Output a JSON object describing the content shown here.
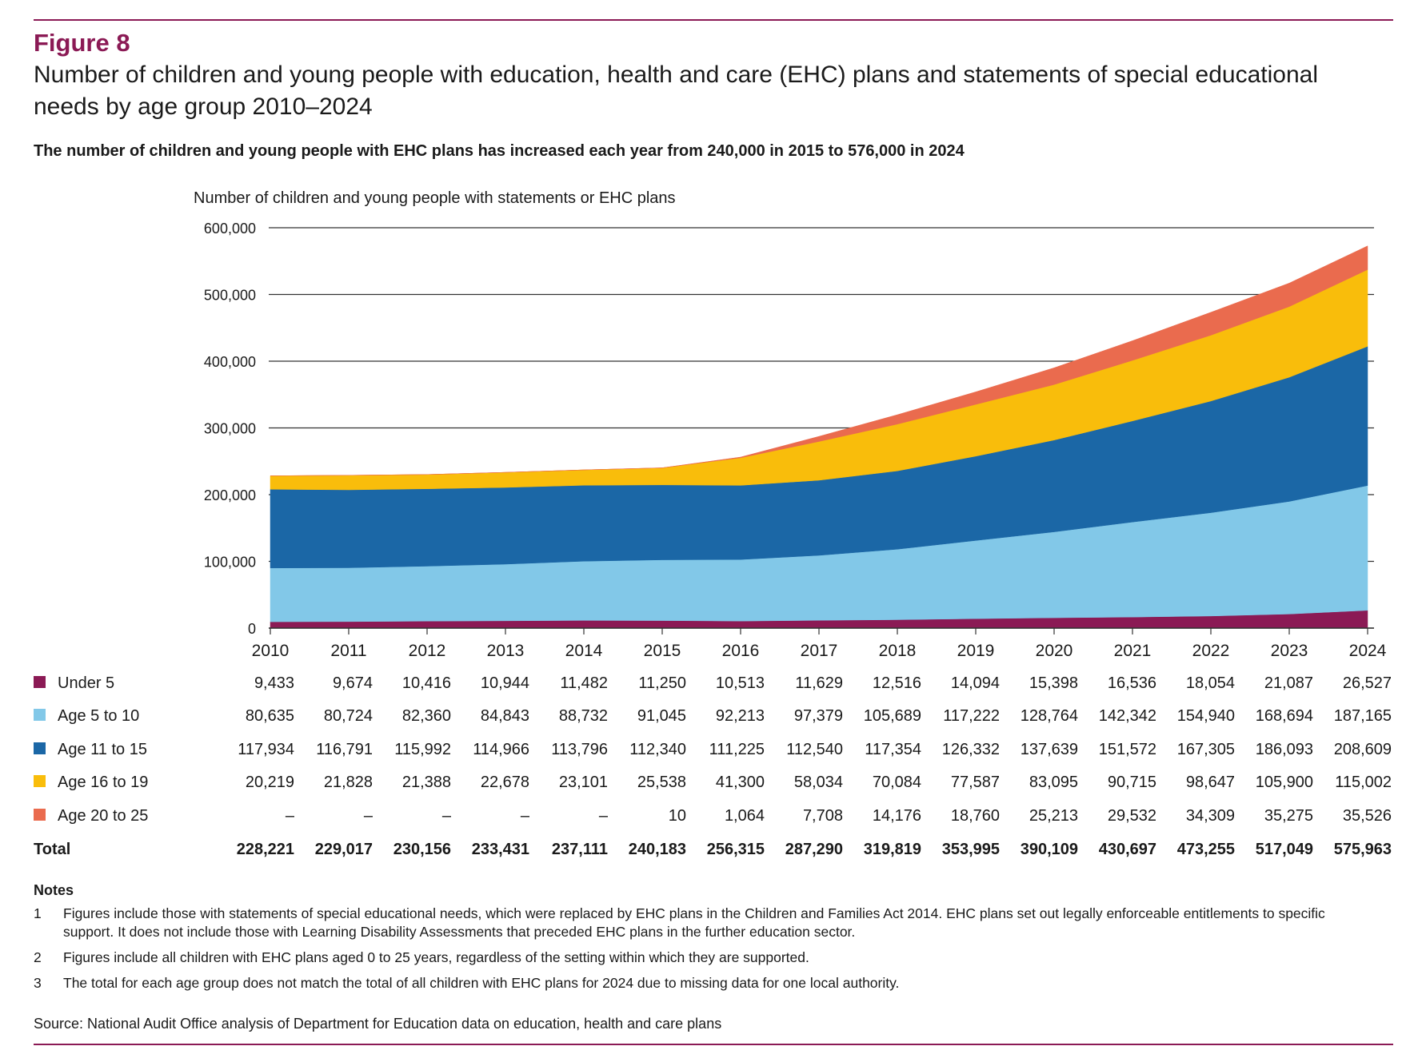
{
  "figure_label": "Figure 8",
  "title": "Number of children and young people with education, health and care (EHC) plans and statements of special educational needs by age group 2010–2024",
  "subtitle": "The number of children and young people with EHC plans has increased each year from 240,000 in 2015 to 576,000 in 2024",
  "chart_data": {
    "type": "area",
    "stacked": true,
    "ylabel": "Number of children and young people with statements or EHC plans",
    "ylim": [
      0,
      600000
    ],
    "yticks": [
      "0",
      "100,000",
      "200,000",
      "300,000",
      "400,000",
      "500,000",
      "600,000"
    ],
    "categories": [
      "2010",
      "2011",
      "2012",
      "2013",
      "2014",
      "2015",
      "2016",
      "2017",
      "2018",
      "2019",
      "2020",
      "2021",
      "2022",
      "2023",
      "2024"
    ],
    "series": [
      {
        "name": "Under 5",
        "color": "#8b1a55",
        "values": [
          9433,
          9674,
          10416,
          10944,
          11482,
          11250,
          10513,
          11629,
          12516,
          14094,
          15398,
          16536,
          18054,
          21087,
          26527
        ],
        "labels": [
          "9,433",
          "9,674",
          "10,416",
          "10,944",
          "11,482",
          "11,250",
          "10,513",
          "11,629",
          "12,516",
          "14,094",
          "15,398",
          "16,536",
          "18,054",
          "21,087",
          "26,527"
        ]
      },
      {
        "name": "Age 5 to 10",
        "color": "#82c8e8",
        "values": [
          80635,
          80724,
          82360,
          84843,
          88732,
          91045,
          92213,
          97379,
          105689,
          117222,
          128764,
          142342,
          154940,
          168694,
          187165
        ],
        "labels": [
          "80,635",
          "80,724",
          "82,360",
          "84,843",
          "88,732",
          "91,045",
          "92,213",
          "97,379",
          "105,689",
          "117,222",
          "128,764",
          "142,342",
          "154,940",
          "168,694",
          "187,165"
        ]
      },
      {
        "name": "Age 11 to 15",
        "color": "#1b67a6",
        "values": [
          117934,
          116791,
          115992,
          114966,
          113796,
          112340,
          111225,
          112540,
          117354,
          126332,
          137639,
          151572,
          167305,
          186093,
          208609
        ],
        "labels": [
          "117,934",
          "116,791",
          "115,992",
          "114,966",
          "113,796",
          "112,340",
          "111,225",
          "112,540",
          "117,354",
          "126,332",
          "137,639",
          "151,572",
          "167,305",
          "186,093",
          "208,609"
        ]
      },
      {
        "name": "Age 16 to 19",
        "color": "#f9bd0b",
        "values": [
          20219,
          21828,
          21388,
          22678,
          23101,
          25538,
          41300,
          58034,
          70084,
          77587,
          83095,
          90715,
          98647,
          105900,
          115002
        ],
        "labels": [
          "20,219",
          "21,828",
          "21,388",
          "22,678",
          "23,101",
          "25,538",
          "41,300",
          "58,034",
          "70,084",
          "77,587",
          "83,095",
          "90,715",
          "98,647",
          "105,900",
          "115,002"
        ]
      },
      {
        "name": "Age 20 to 25",
        "color": "#ea6b4e",
        "values": [
          0,
          0,
          0,
          0,
          0,
          10,
          1064,
          7708,
          14176,
          18760,
          25213,
          29532,
          34309,
          35275,
          35526
        ],
        "labels": [
          "–",
          "–",
          "–",
          "–",
          "–",
          "10",
          "1,064",
          "7,708",
          "14,176",
          "18,760",
          "25,213",
          "29,532",
          "34,309",
          "35,275",
          "35,526"
        ]
      }
    ],
    "total_label": "Total",
    "totals": [
      "228,221",
      "229,017",
      "230,156",
      "233,431",
      "237,111",
      "240,183",
      "256,315",
      "287,290",
      "319,819",
      "353,995",
      "390,109",
      "430,697",
      "473,255",
      "517,049",
      "575,963"
    ]
  },
  "notes_heading": "Notes",
  "notes": [
    {
      "num": "1",
      "text": "Figures include those with statements of special educational needs, which were replaced by EHC plans in the Children and Families Act 2014. EHC plans set out legally enforceable entitlements to specific support. It does not include those with Learning Disability Assessments that preceded EHC plans in the further education sector."
    },
    {
      "num": "2",
      "text": "Figures include all children with EHC plans aged 0 to 25 years, regardless of the setting within which they are supported."
    },
    {
      "num": "3",
      "text": "The total for each age group does not match the total of all children with EHC plans for 2024 due to missing data for one local authority."
    }
  ],
  "source": "Source: National Audit Office analysis of Department for Education data on education, health and care plans"
}
